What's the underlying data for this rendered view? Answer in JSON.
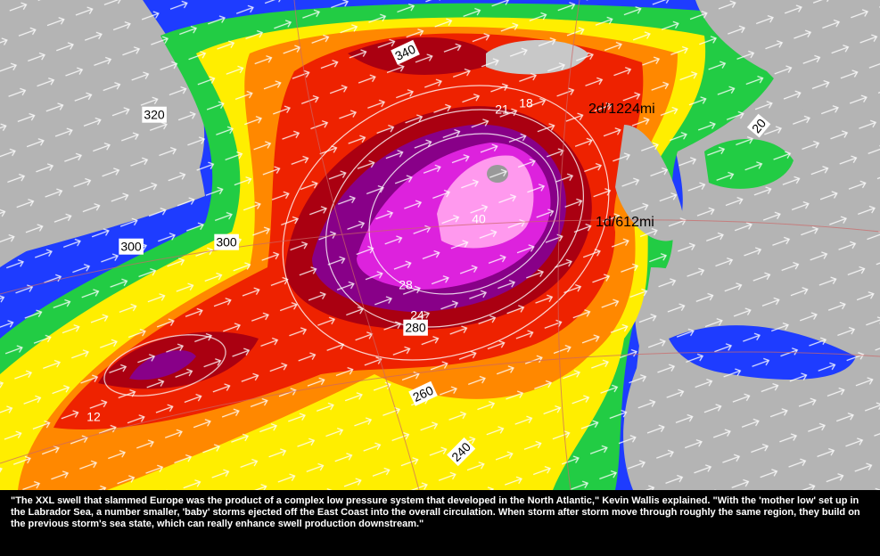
{
  "map": {
    "labels": [
      "340",
      "320",
      "300",
      "300",
      "21",
      "18",
      "2d/1224mi",
      "20",
      "1d/612mi",
      "40",
      "28",
      "24",
      "280",
      "260",
      "12",
      "240"
    ]
  },
  "caption": "\"The XXL swell that slammed Europe was the product of a complex low pressure system that developed in the North Atlantic,\" Kevin Wallis explained. \"With the 'mother low' set up in the Labrador Sea, a number smaller, 'baby' storms ejected off the East Coast into the overall circulation. When storm after storm move through roughly the same region, they build on the previous storm's sea state, which can really enhance swell production downstream.\""
}
